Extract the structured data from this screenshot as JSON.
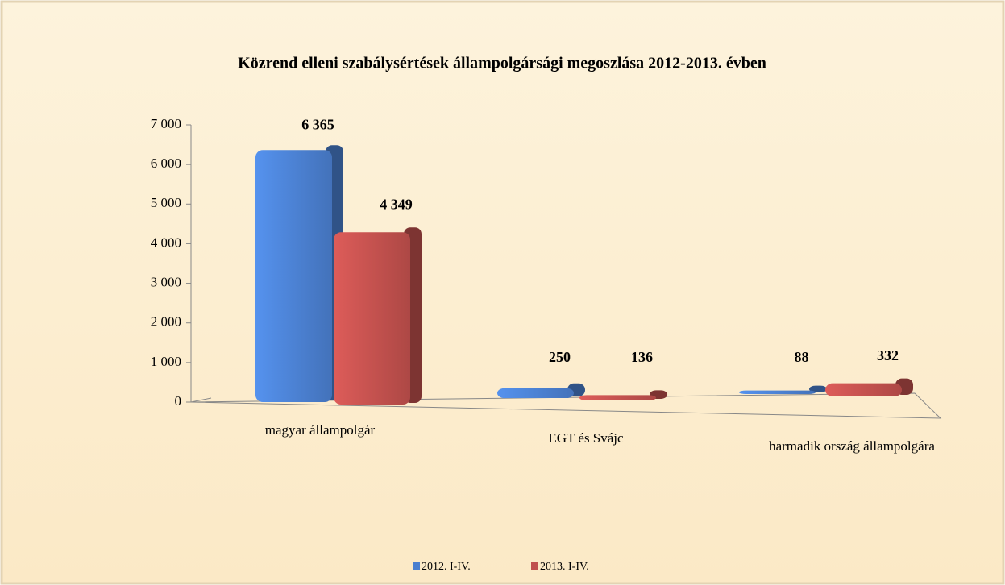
{
  "chart_data": {
    "type": "bar",
    "title": "Közrend elleni szabálysértések állampolgársági megoszlása 2012-2013. évben",
    "categories": [
      "magyar állampolgár",
      "EGT és Svájc",
      "harmadik ország állampolgára"
    ],
    "series": [
      {
        "name": "2012. I-IV.",
        "color": "#4a7fcf",
        "values": [
          6365,
          250,
          88
        ],
        "value_labels": [
          "6 365",
          "250",
          "88"
        ]
      },
      {
        "name": "2013. I-IV.",
        "color": "#c0504d",
        "values": [
          4349,
          136,
          332
        ],
        "value_labels": [
          "4 349",
          "136",
          "332"
        ]
      }
    ],
    "ylim": [
      0,
      7000
    ],
    "yticks": [
      0,
      {
        "value": 1000,
        "label": "1 000"
      },
      {
        "value": 2000,
        "label": "2 000"
      },
      {
        "value": 3000,
        "label": "3 000"
      },
      {
        "value": 4000,
        "label": "4 000"
      },
      {
        "value": 5000,
        "label": "5 000"
      },
      {
        "value": 6000,
        "label": "6 000"
      },
      {
        "value": 7000,
        "label": "7 000"
      }
    ],
    "legend": "bottom"
  }
}
